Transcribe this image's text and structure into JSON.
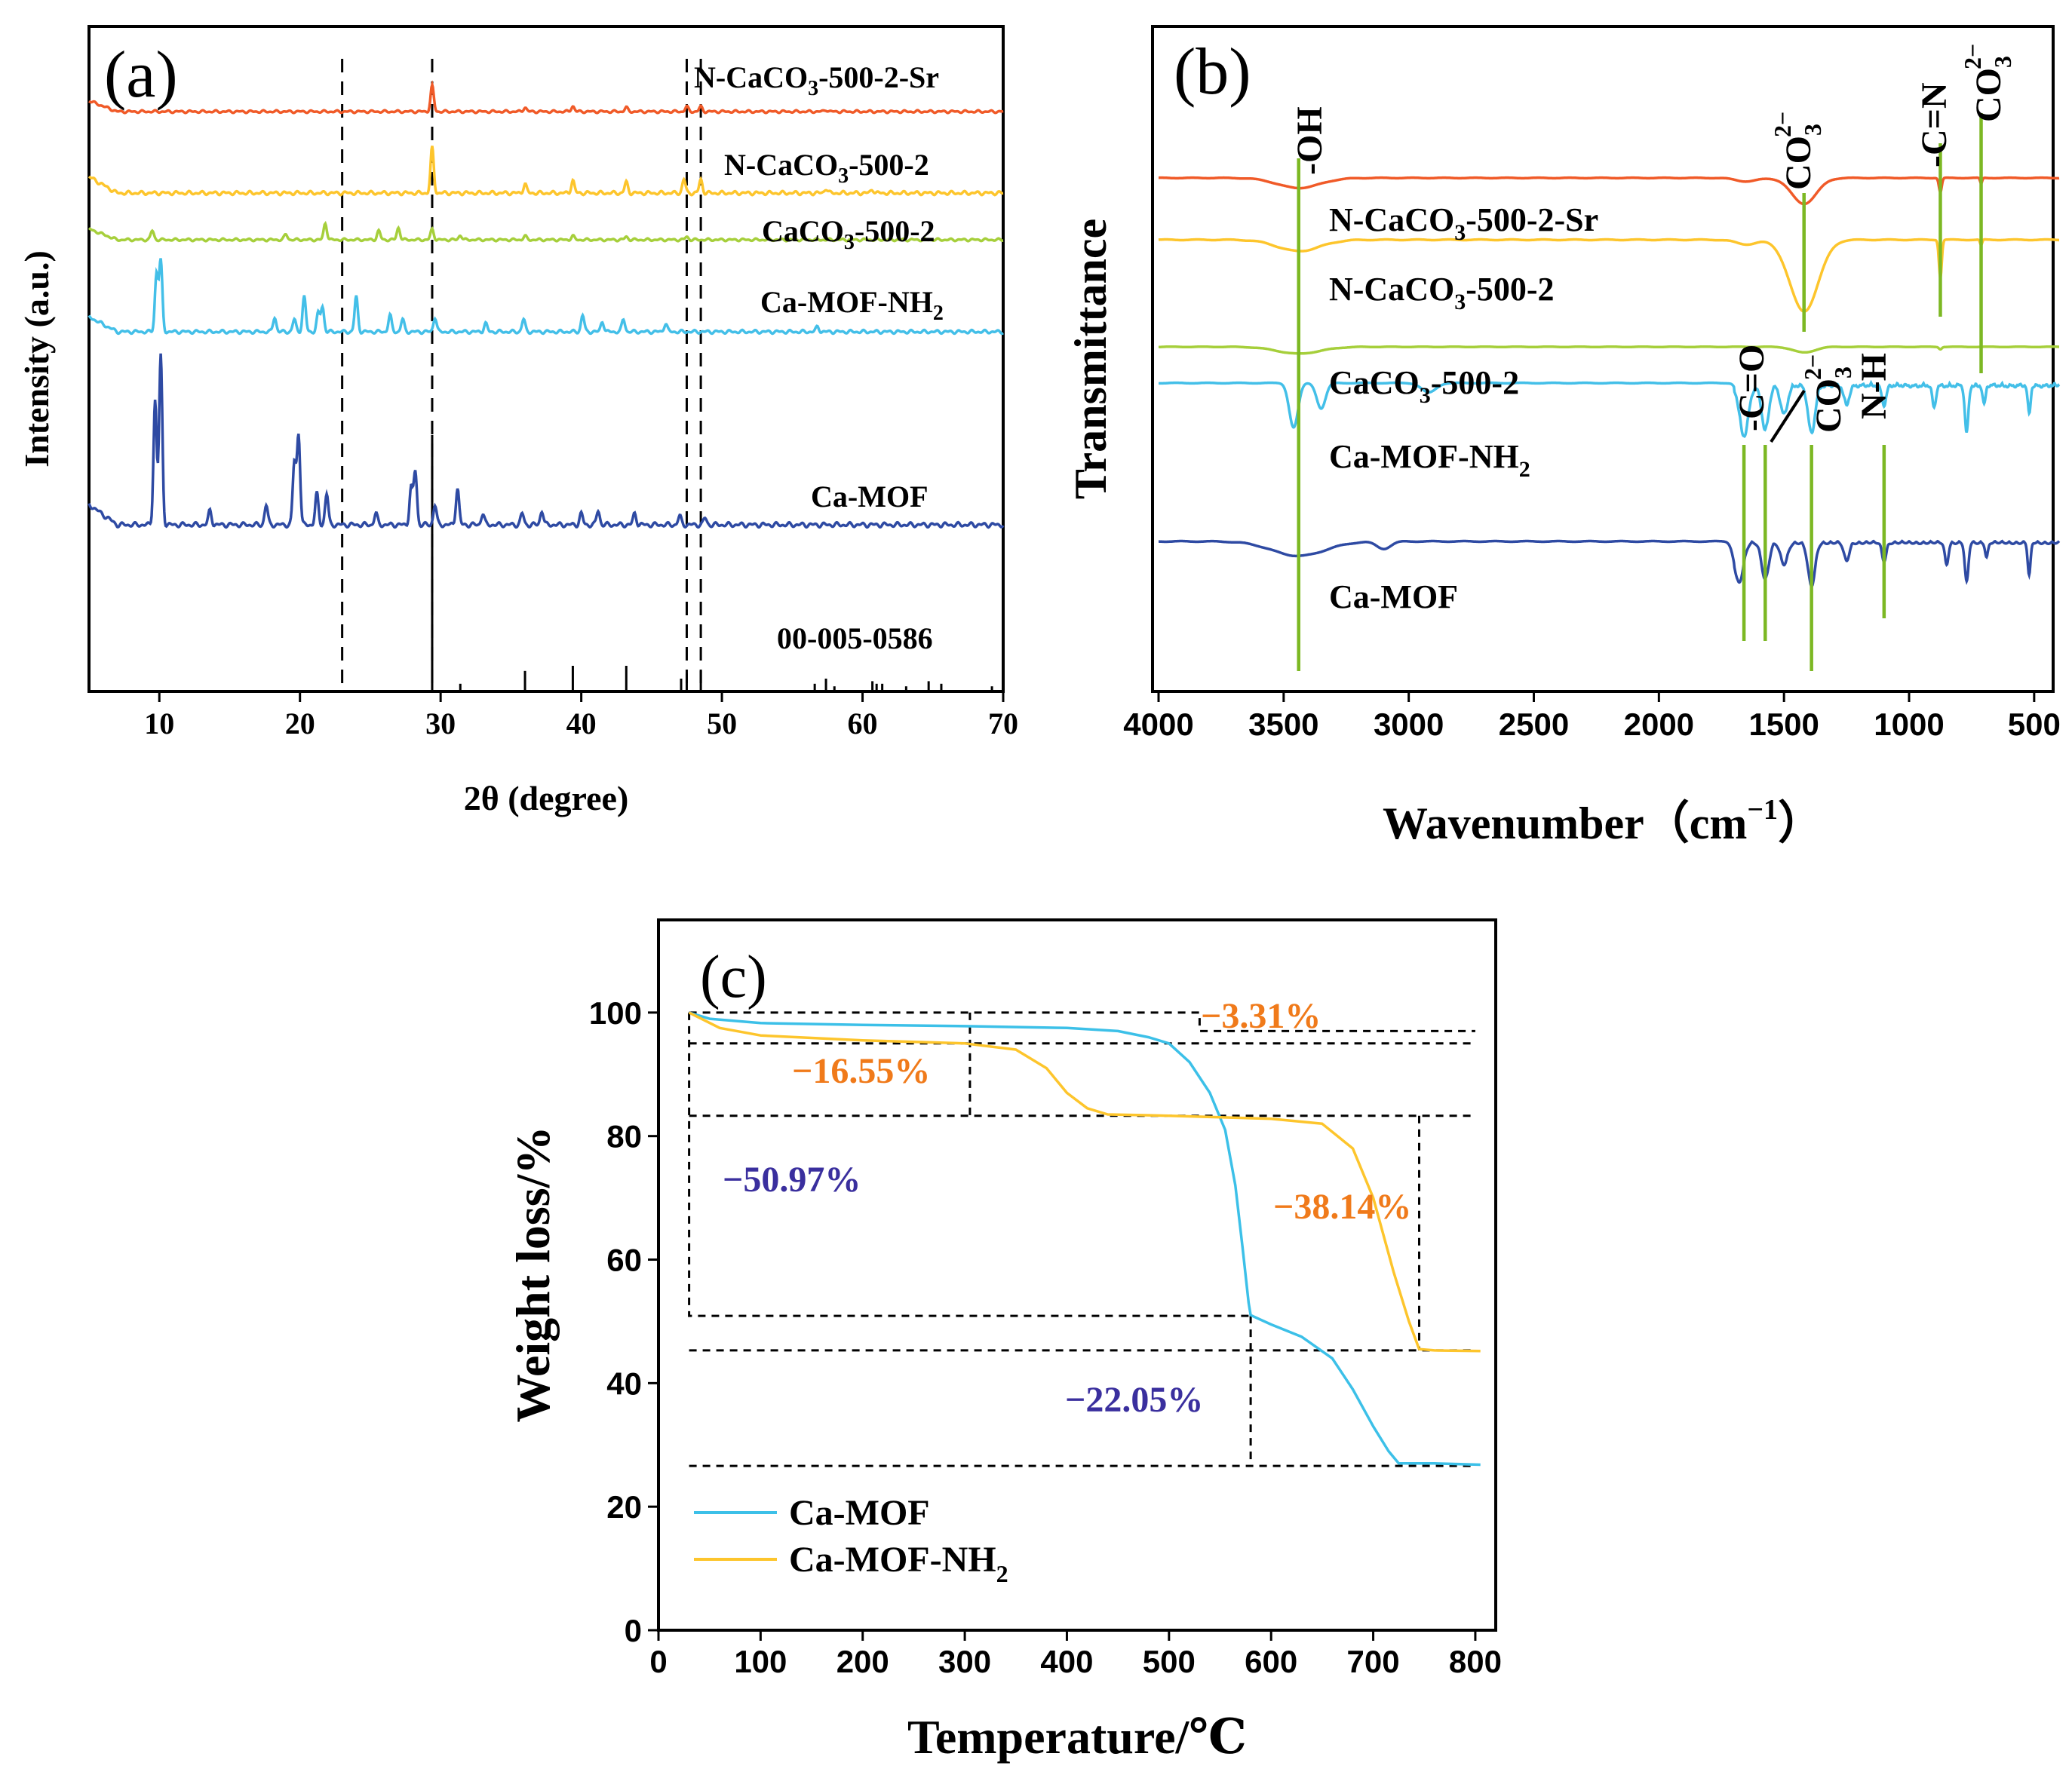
{
  "chart_data": [
    {
      "panel": "a",
      "type": "line",
      "panel_label": "(a)",
      "xlabel": "2θ (degree)",
      "ylabel": "Intensity (a.u.)",
      "xlim": [
        5,
        70
      ],
      "xticks": [
        10,
        20,
        30,
        40,
        50,
        60,
        70
      ],
      "xticklabels": [
        "10",
        "20",
        "30",
        "40",
        "50",
        "60",
        "70"
      ],
      "dashed_lines_x": [
        23.0,
        29.4,
        47.5,
        48.5
      ],
      "series": [
        {
          "name": "N-CaCO3-500-2-Sr",
          "label_main": "N-CaCO",
          "label_sub": "3",
          "label_tail": "-500-2-Sr",
          "color": "#f05a28",
          "baseline": 0.0,
          "peaks": [
            [
              29.4,
              0.85
            ],
            [
              36.0,
              0.14
            ],
            [
              39.4,
              0.18
            ],
            [
              43.2,
              0.13
            ],
            [
              47.5,
              0.16
            ],
            [
              48.5,
              0.16
            ],
            [
              57.4,
              0.06
            ]
          ]
        },
        {
          "name": "N-CaCO3-500-2",
          "label_main": "N-CaCO",
          "label_sub": "3",
          "label_tail": "-500-2",
          "color": "#fdc52c",
          "baseline": 0.0,
          "peaks": [
            [
              29.4,
              1.0
            ],
            [
              36.0,
              0.2
            ],
            [
              39.4,
              0.28
            ],
            [
              43.2,
              0.24
            ],
            [
              47.3,
              0.3
            ],
            [
              48.5,
              0.3
            ],
            [
              57.4,
              0.1
            ],
            [
              60.7,
              0.08
            ]
          ]
        },
        {
          "name": "CaCO3-500-2",
          "label_main": "CaCO",
          "label_sub": "3",
          "label_tail": "-500-2",
          "color": "#a6cf3b",
          "baseline": 0.0,
          "peaks": [
            [
              9.5,
              0.3
            ],
            [
              19.0,
              0.18
            ],
            [
              21.8,
              0.55
            ],
            [
              25.6,
              0.3
            ],
            [
              27.0,
              0.4
            ],
            [
              29.4,
              0.35
            ],
            [
              31.4,
              0.15
            ],
            [
              36.0,
              0.12
            ],
            [
              39.4,
              0.12
            ],
            [
              43.2,
              0.1
            ],
            [
              47.5,
              0.1
            ]
          ]
        },
        {
          "name": "Ca-MOF-NH2",
          "label_main": "Ca-MOF-NH",
          "label_sub": "2",
          "label_tail": "",
          "color": "#43bfe8",
          "baseline": 0.0,
          "peaks": [
            [
              9.8,
              1.4
            ],
            [
              10.1,
              1.7
            ],
            [
              18.2,
              0.35
            ],
            [
              19.6,
              0.3
            ],
            [
              20.3,
              0.85
            ],
            [
              21.3,
              0.45
            ],
            [
              21.6,
              0.6
            ],
            [
              24.0,
              0.85
            ],
            [
              26.4,
              0.4
            ],
            [
              27.3,
              0.3
            ],
            [
              29.6,
              0.35
            ],
            [
              33.2,
              0.2
            ],
            [
              35.9,
              0.3
            ],
            [
              40.1,
              0.4
            ],
            [
              41.5,
              0.25
            ],
            [
              43.0,
              0.3
            ],
            [
              46.0,
              0.2
            ],
            [
              56.8,
              0.12
            ]
          ]
        },
        {
          "name": "Ca-MOF",
          "label_main": "Ca-MOF",
          "label_sub": "",
          "label_tail": "",
          "color": "#2e4aa3",
          "baseline": 0.0,
          "peaks": [
            [
              9.7,
              2.2
            ],
            [
              10.1,
              3.0
            ],
            [
              13.6,
              0.25
            ],
            [
              17.6,
              0.35
            ],
            [
              19.6,
              1.1
            ],
            [
              19.9,
              1.6
            ],
            [
              21.2,
              0.55
            ],
            [
              21.9,
              0.55
            ],
            [
              25.4,
              0.2
            ],
            [
              27.9,
              0.65
            ],
            [
              28.2,
              0.95
            ],
            [
              29.6,
              0.35
            ],
            [
              31.2,
              0.65
            ],
            [
              33.0,
              0.2
            ],
            [
              35.8,
              0.2
            ],
            [
              37.2,
              0.25
            ],
            [
              40.0,
              0.2
            ],
            [
              41.2,
              0.25
            ],
            [
              43.8,
              0.2
            ],
            [
              47.0,
              0.15
            ],
            [
              48.8,
              0.12
            ]
          ]
        }
      ],
      "reference": {
        "name": "00-005-0586",
        "sticks": [
          [
            29.4,
            1.0
          ],
          [
            31.4,
            0.03
          ],
          [
            36.0,
            0.08
          ],
          [
            39.4,
            0.1
          ],
          [
            43.2,
            0.1
          ],
          [
            47.1,
            0.05
          ],
          [
            47.5,
            0.07
          ],
          [
            48.5,
            0.08
          ],
          [
            56.6,
            0.03
          ],
          [
            57.4,
            0.05
          ],
          [
            58.0,
            0.02
          ],
          [
            60.7,
            0.04
          ],
          [
            61.0,
            0.03
          ],
          [
            61.4,
            0.03
          ],
          [
            63.1,
            0.02
          ],
          [
            64.7,
            0.04
          ],
          [
            65.6,
            0.03
          ],
          [
            69.2,
            0.02
          ]
        ]
      }
    },
    {
      "panel": "b",
      "type": "line",
      "panel_label": "(b)",
      "xlabel_main": "Wavenumber（cm",
      "xlabel_sup": "−1",
      "xlabel_tail": "）",
      "ylabel": "Transmittance",
      "xlim": [
        4000,
        400
      ],
      "xticks": [
        4000,
        3500,
        3000,
        2500,
        2000,
        1500,
        1000,
        500
      ],
      "xticklabels": [
        "4000",
        "3500",
        "3000",
        "2500",
        "2000",
        "1500",
        "1000",
        "500"
      ],
      "marker_lines_x": [
        3440,
        1660,
        1575,
        1390,
        1420,
        1100,
        875,
        712
      ],
      "band_labels": [
        {
          "text": "-OH",
          "sub": "",
          "sup": ""
        },
        {
          "text": "CO",
          "sub": "3",
          "sup": "2−"
        },
        {
          "text": "-C=N",
          "sub": "",
          "sup": ""
        },
        {
          "text": "CO",
          "sub": "3",
          "sup": "2−"
        },
        {
          "text": "-C=O",
          "sub": "",
          "sup": ""
        },
        {
          "text": "CO",
          "sub": "3",
          "sup": "2−"
        },
        {
          "text": "N-H",
          "sub": "",
          "sup": ""
        }
      ],
      "series": [
        {
          "name": "N-CaCO3-500-2-Sr",
          "label_main": "N-CaCO",
          "label_sub": "3",
          "label_tail": "-500-2-Sr",
          "color": "#f05a28",
          "dips": [
            [
              3440,
              0.35,
              120
            ],
            [
              1650,
              0.12,
              60
            ],
            [
              1420,
              0.9,
              70
            ],
            [
              875,
              0.5,
              8
            ],
            [
              712,
              0.2,
              6
            ]
          ]
        },
        {
          "name": "N-CaCO3-500-2",
          "label_main": "N-CaCO",
          "label_sub": "3",
          "label_tail": "-500-2",
          "color": "#fdc52c",
          "dips": [
            [
              3440,
              0.3,
              120
            ],
            [
              1650,
              0.12,
              60
            ],
            [
              1420,
              1.9,
              80
            ],
            [
              875,
              1.0,
              8
            ],
            [
              712,
              0.15,
              6
            ]
          ]
        },
        {
          "name": "CaCO3-500-2",
          "label_main": "CaCO",
          "label_sub": "3",
          "label_tail": "-500-2",
          "color": "#a6cf3b",
          "dips": [
            [
              3440,
              0.3,
              120
            ],
            [
              1420,
              0.25,
              60
            ],
            [
              875,
              0.1,
              8
            ]
          ]
        },
        {
          "name": "Ca-MOF-NH2",
          "label_main": "Ca-MOF-NH",
          "label_sub": "2",
          "label_tail": "",
          "color": "#43bfe8",
          "dips": [
            [
              3460,
              1.4,
              25
            ],
            [
              3350,
              0.8,
              25
            ],
            [
              2920,
              0.3,
              40
            ],
            [
              1660,
              1.6,
              25
            ],
            [
              1575,
              1.4,
              20
            ],
            [
              1500,
              0.9,
              20
            ],
            [
              1390,
              1.5,
              20
            ],
            [
              1250,
              0.6,
              15
            ],
            [
              1100,
              0.6,
              12
            ],
            [
              900,
              0.7,
              10
            ],
            [
              770,
              1.5,
              10
            ],
            [
              700,
              0.6,
              8
            ],
            [
              520,
              0.9,
              8
            ]
          ]
        },
        {
          "name": "Ca-MOF",
          "label_main": "Ca-MOF",
          "label_sub": "",
          "label_tail": "",
          "color": "#2e4aa3",
          "dips": [
            [
              3440,
              0.4,
              150
            ],
            [
              3100,
              0.2,
              40
            ],
            [
              1680,
              1.1,
              25
            ],
            [
              1575,
              1.0,
              20
            ],
            [
              1500,
              0.6,
              20
            ],
            [
              1390,
              1.2,
              20
            ],
            [
              1250,
              0.5,
              15
            ],
            [
              1100,
              0.5,
              12
            ],
            [
              850,
              0.6,
              10
            ],
            [
              770,
              1.1,
              10
            ],
            [
              690,
              0.4,
              8
            ],
            [
              520,
              0.9,
              8
            ]
          ]
        }
      ]
    },
    {
      "panel": "c",
      "type": "line",
      "panel_label": "(c)",
      "xlabel": "Temperature/℃",
      "ylabel": "Weight loss/%",
      "xlim": [
        0,
        820
      ],
      "ylim": [
        0,
        115
      ],
      "xticks": [
        0,
        100,
        200,
        300,
        400,
        500,
        600,
        700,
        800
      ],
      "xticklabels": [
        "0",
        "100",
        "200",
        "300",
        "400",
        "500",
        "600",
        "700",
        "800"
      ],
      "yticks": [
        0,
        20,
        40,
        60,
        80,
        100
      ],
      "yticklabels": [
        "0",
        "20",
        "40",
        "60",
        "80",
        "100"
      ],
      "series": [
        {
          "name": "Ca-MOF",
          "legend_main": "Ca-MOF",
          "legend_sub": "",
          "color": "#3cc0e8",
          "x": [
            30,
            50,
            100,
            200,
            300,
            400,
            450,
            480,
            500,
            520,
            540,
            555,
            565,
            572,
            578,
            580,
            600,
            630,
            660,
            680,
            700,
            715,
            725,
            760,
            805
          ],
          "y": [
            100,
            99,
            98.3,
            98,
            97.8,
            97.5,
            97,
            96,
            95,
            92,
            87,
            81,
            72,
            62,
            53,
            51,
            49.5,
            47.5,
            44,
            39,
            33,
            29,
            27,
            27,
            26.8
          ]
        },
        {
          "name": "Ca-MOF-NH2",
          "legend_main": "Ca-MOF-NH",
          "legend_sub": "2",
          "color": "#fdc52c",
          "x": [
            30,
            60,
            100,
            200,
            300,
            350,
            380,
            400,
            420,
            440,
            500,
            600,
            650,
            680,
            700,
            720,
            735,
            745,
            760,
            805
          ],
          "y": [
            100,
            97.5,
            96.3,
            95.5,
            95,
            94,
            91,
            87,
            84.5,
            83.5,
            83.3,
            82.8,
            82,
            78,
            70,
            58,
            50,
            45.5,
            45.3,
            45.2
          ]
        }
      ],
      "annotations": [
        {
          "text": "−3.31%",
          "color": "#f07a1a"
        },
        {
          "text": "−16.55%",
          "color": "#f07a1a"
        },
        {
          "text": "−50.97%",
          "color": "#3a2f9e"
        },
        {
          "text": "−38.14%",
          "color": "#f07a1a"
        },
        {
          "text": "−22.05%",
          "color": "#3a2f9e"
        }
      ]
    }
  ]
}
